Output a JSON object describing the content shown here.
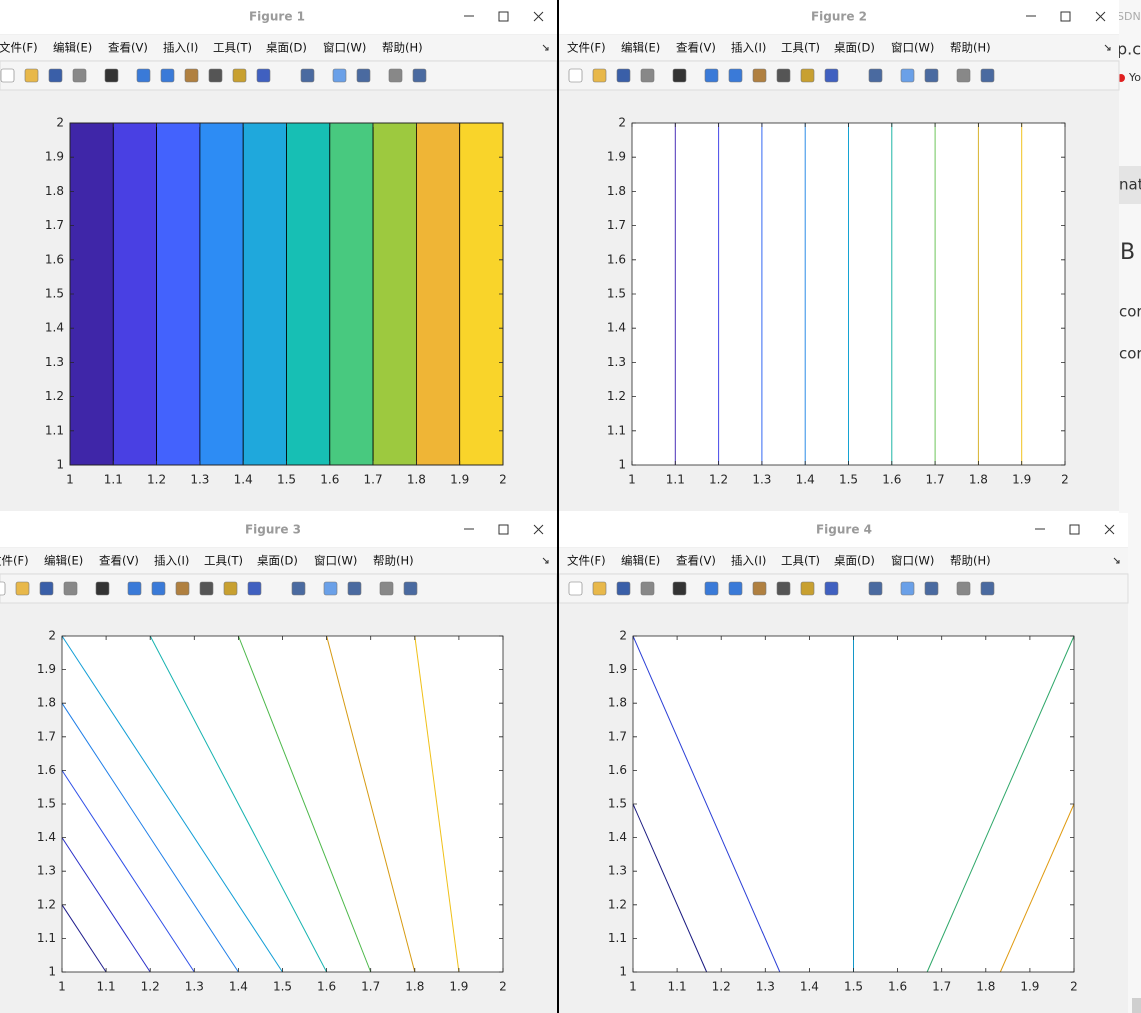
{
  "windows": [
    {
      "title": "Figure 1"
    },
    {
      "title": "Figure 2"
    },
    {
      "title": "Figure 3"
    },
    {
      "title": "Figure 4"
    }
  ],
  "menu": [
    "文件(F)",
    "编辑(E)",
    "查看(V)",
    "插入(I)",
    "工具(T)",
    "桌面(D)",
    "窗口(W)",
    "帮助(H)"
  ],
  "side_texts": [
    "SDN",
    "p.cs",
    "Yo",
    "nat",
    "B",
    "cor",
    "cor"
  ],
  "chart_data": [
    {
      "type": "contourf",
      "levels": [
        1,
        1.1,
        1.2,
        1.3,
        1.4,
        1.5,
        1.6,
        1.7,
        1.8,
        1.9,
        2
      ],
      "colors": [
        "#3f26a8",
        "#4940e3",
        "#4362fd",
        "#2d8cf4",
        "#1fa8dc",
        "#17bfb4",
        "#48c97f",
        "#9dc93f",
        "#efb536",
        "#f9d42a"
      ],
      "xlim": [
        1,
        2
      ],
      "ylim": [
        1,
        2
      ],
      "xticks": [
        1,
        1.1,
        1.2,
        1.3,
        1.4,
        1.5,
        1.6,
        1.7,
        1.8,
        1.9,
        2
      ],
      "yticks": [
        1,
        1.1,
        1.2,
        1.3,
        1.4,
        1.5,
        1.6,
        1.7,
        1.8,
        1.9,
        2
      ]
    },
    {
      "type": "contour",
      "lines": [
        {
          "color": "#4a2fb8",
          "x": [
            1.1,
            1.1
          ],
          "y": [
            1,
            2
          ]
        },
        {
          "color": "#4548e8",
          "x": [
            1.2,
            1.2
          ],
          "y": [
            1,
            2
          ]
        },
        {
          "color": "#3468f2",
          "x": [
            1.3,
            1.3
          ],
          "y": [
            1,
            2
          ]
        },
        {
          "color": "#2a8ce6",
          "x": [
            1.4,
            1.4
          ],
          "y": [
            1,
            2
          ]
        },
        {
          "color": "#14a3d3",
          "x": [
            1.5,
            1.5
          ],
          "y": [
            1,
            2
          ]
        },
        {
          "color": "#1db5a6",
          "x": [
            1.6,
            1.6
          ],
          "y": [
            1,
            2
          ]
        },
        {
          "color": "#6dc55a",
          "x": [
            1.7,
            1.7
          ],
          "y": [
            1,
            2
          ]
        },
        {
          "color": "#d9b32c",
          "x": [
            1.8,
            1.8
          ],
          "y": [
            1,
            2
          ]
        },
        {
          "color": "#f2c21c",
          "x": [
            1.9,
            1.9
          ],
          "y": [
            1,
            2
          ]
        }
      ],
      "xlim": [
        1,
        2
      ],
      "ylim": [
        1,
        2
      ],
      "xticks": [
        1,
        1.1,
        1.2,
        1.3,
        1.4,
        1.5,
        1.6,
        1.7,
        1.8,
        1.9,
        2
      ],
      "yticks": [
        1,
        1.1,
        1.2,
        1.3,
        1.4,
        1.5,
        1.6,
        1.7,
        1.8,
        1.9,
        2
      ]
    },
    {
      "type": "contour",
      "lines": [
        {
          "color": "#1f1d8c",
          "x": [
            1,
            1.1
          ],
          "y": [
            1.2,
            1
          ]
        },
        {
          "color": "#2a2fc8",
          "x": [
            1,
            1.2
          ],
          "y": [
            1.4,
            1
          ]
        },
        {
          "color": "#2f4fe8",
          "x": [
            1,
            1.3
          ],
          "y": [
            1.6,
            1
          ]
        },
        {
          "color": "#1f7ee8",
          "x": [
            1,
            1.4
          ],
          "y": [
            1.8,
            1
          ]
        },
        {
          "color": "#129ed6",
          "x": [
            1,
            1.5
          ],
          "y": [
            2,
            1
          ]
        },
        {
          "color": "#17b3b0",
          "x": [
            1.2,
            1.6
          ],
          "y": [
            2,
            1
          ]
        },
        {
          "color": "#4cb84a",
          "x": [
            1.4,
            1.7
          ],
          "y": [
            2,
            1
          ]
        },
        {
          "color": "#d69a12",
          "x": [
            1.6,
            1.8
          ],
          "y": [
            2,
            1
          ]
        },
        {
          "color": "#f0c018",
          "x": [
            1.8,
            1.9
          ],
          "y": [
            2,
            1
          ]
        }
      ],
      "xlim": [
        1,
        2
      ],
      "ylim": [
        1,
        2
      ],
      "xticks": [
        1,
        1.1,
        1.2,
        1.3,
        1.4,
        1.5,
        1.6,
        1.7,
        1.8,
        1.9,
        2
      ],
      "yticks": [
        1,
        1.1,
        1.2,
        1.3,
        1.4,
        1.5,
        1.6,
        1.7,
        1.8,
        1.9,
        2
      ]
    },
    {
      "type": "contour",
      "lines": [
        {
          "color": "#1a1a80",
          "x": [
            1,
            1.167
          ],
          "y": [
            1.5,
            1
          ]
        },
        {
          "color": "#2b3fd6",
          "x": [
            1,
            1.333
          ],
          "y": [
            2,
            1
          ]
        },
        {
          "color": "#1497c8",
          "x": [
            1.5,
            1.5
          ],
          "y": [
            2,
            1
          ]
        },
        {
          "color": "#2fa86a",
          "x": [
            1.667,
            2
          ],
          "y": [
            1,
            2
          ]
        },
        {
          "color": "#e09a10",
          "x": [
            1.833,
            2
          ],
          "y": [
            1,
            1.5
          ]
        }
      ],
      "xlim": [
        1,
        2
      ],
      "ylim": [
        1,
        2
      ],
      "xticks": [
        1,
        1.1,
        1.2,
        1.3,
        1.4,
        1.5,
        1.6,
        1.7,
        1.8,
        1.9,
        2
      ],
      "yticks": [
        1,
        1.1,
        1.2,
        1.3,
        1.4,
        1.5,
        1.6,
        1.7,
        1.8,
        1.9,
        2
      ]
    }
  ]
}
